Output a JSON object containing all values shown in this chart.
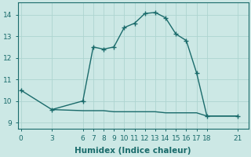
{
  "series1_x": [
    0,
    3,
    6,
    7,
    8,
    9,
    10,
    11,
    12,
    13,
    14,
    15,
    16,
    17,
    18,
    21
  ],
  "series1_y": [
    10.5,
    9.6,
    10.0,
    12.5,
    12.4,
    12.5,
    13.4,
    13.6,
    14.05,
    14.1,
    13.85,
    13.1,
    12.8,
    11.3,
    9.3,
    9.3
  ],
  "series2_x": [
    3,
    6,
    7,
    8,
    9,
    10,
    11,
    12,
    13,
    14,
    15,
    16,
    17,
    18,
    21
  ],
  "series2_y": [
    9.6,
    9.55,
    9.55,
    9.55,
    9.5,
    9.5,
    9.5,
    9.5,
    9.5,
    9.45,
    9.45,
    9.45,
    9.45,
    9.3,
    9.3
  ],
  "line_color": "#1a6b6b",
  "bg_color": "#cce8e5",
  "grid_color": "#aed4d0",
  "xlabel": "Humidex (Indice chaleur)",
  "xticks": [
    0,
    3,
    6,
    7,
    8,
    9,
    10,
    11,
    12,
    13,
    14,
    15,
    16,
    17,
    18,
    21
  ],
  "yticks": [
    9,
    10,
    11,
    12,
    13,
    14
  ],
  "xlim": [
    -0.3,
    22.0
  ],
  "ylim": [
    8.7,
    14.55
  ],
  "xlabel_fontsize": 7.5,
  "tick_fontsize": 6.5,
  "linewidth": 1.0,
  "markersize": 4
}
